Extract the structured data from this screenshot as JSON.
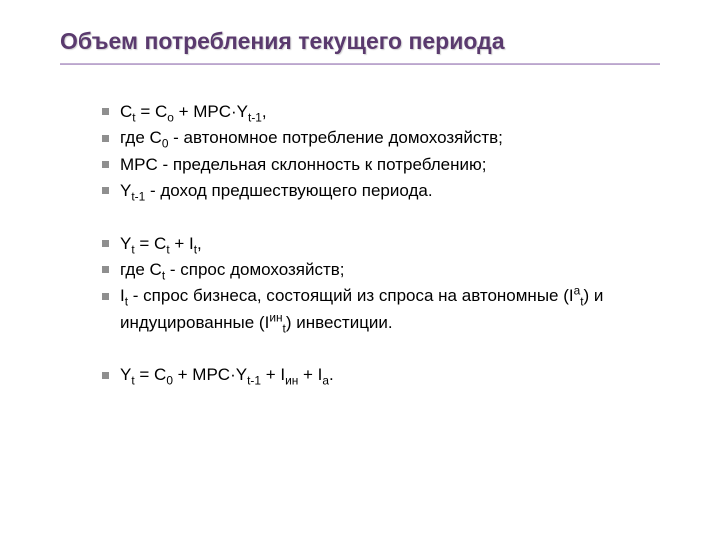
{
  "title": "Объем потребления текущего периода",
  "colors": {
    "title_color": "#5a3a6e",
    "underline_color": "#b79fc9",
    "bullet_color": "#8f8f8f",
    "text_color": "#000000",
    "background": "#ffffff"
  },
  "typography": {
    "title_fontsize_pt": 17,
    "body_fontsize_pt": 13,
    "font_family": "Arial"
  },
  "bullets": [
    {
      "html": "C<sub>t</sub> = C<sub>o</sub> + MPC·Y<sub>t-1</sub>,",
      "blank": false
    },
    {
      "html": "где C<sub>0</sub> - автономное потребление домохозяйств;",
      "blank": false
    },
    {
      "html": " MPC - предельная склонность к потреблению;",
      "blank": false
    },
    {
      "html": "Y<sub>t-1</sub> - доход предшествующего периода.",
      "blank": false
    },
    {
      "html": "&nbsp;",
      "blank": true
    },
    {
      "html": "Y<sub>t</sub> = C<sub>t</sub> + I<sub>t</sub>,",
      "blank": false
    },
    {
      "html": "где C<sub>t</sub> - спрос домохозяйств;",
      "blank": false
    },
    {
      "html": "I<sub>t</sub> - спрос бизнеса, состоящий из спроса на автономные (I<sup>a</sup><sub>t</sub>) и индуцированные (I<sup>ин</sup><sub>t</sub>) инвестиции.",
      "blank": false
    },
    {
      "html": "&nbsp;",
      "blank": true
    },
    {
      "html": "Y<sub>t</sub> = C<sub>0</sub> + MPC·Y<sub>t-1</sub> + I<sub>ин</sub> + I<sub>a</sub>.",
      "blank": false
    }
  ]
}
